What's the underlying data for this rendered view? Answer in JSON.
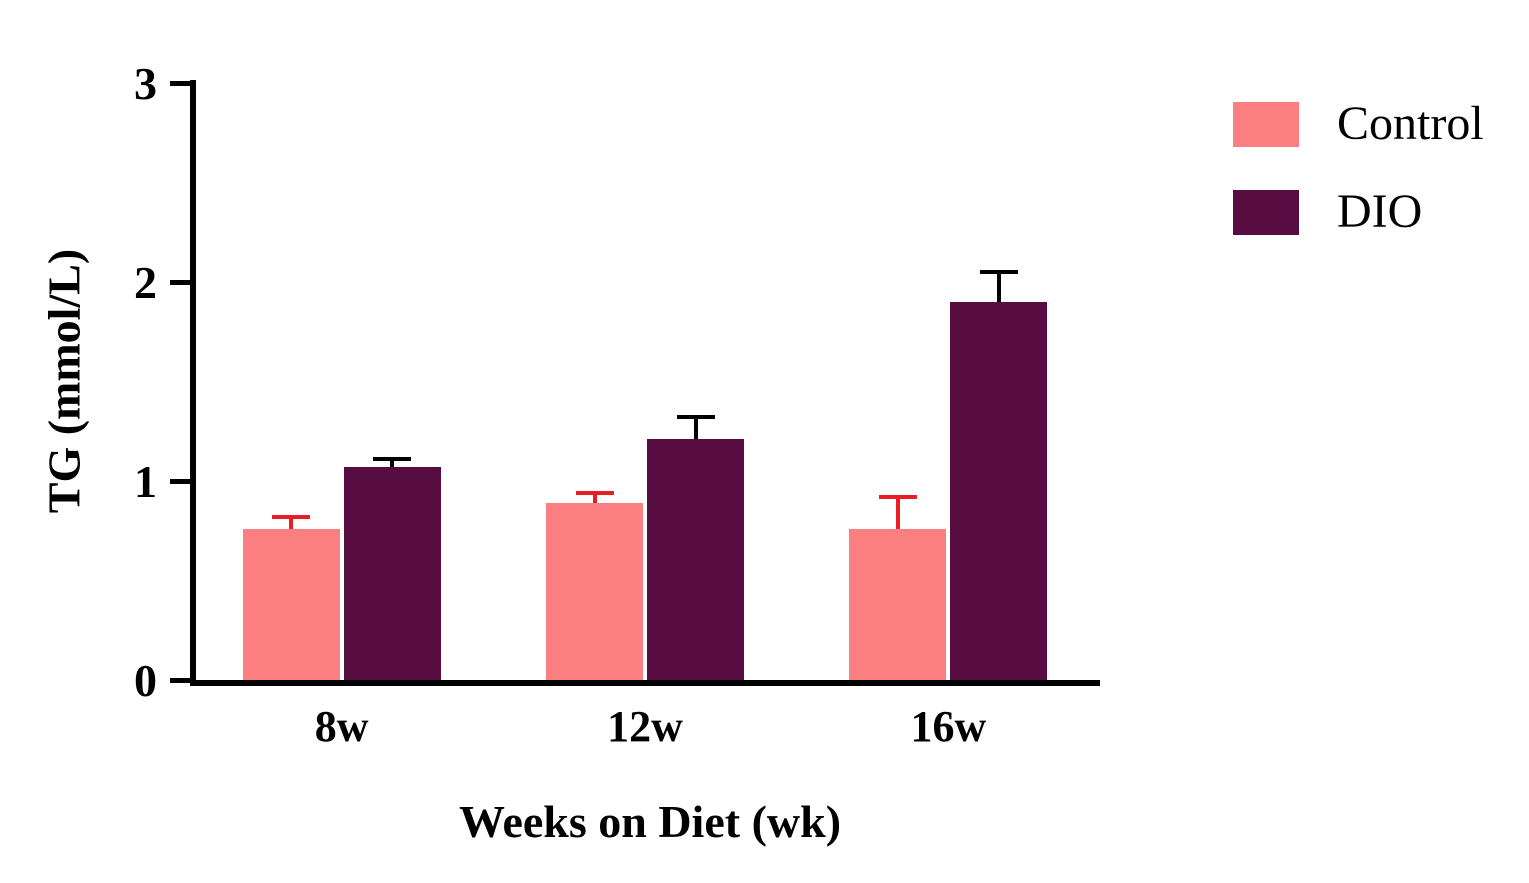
{
  "chart_data": {
    "type": "bar",
    "title": "",
    "xlabel": "Weeks on Diet (wk)",
    "ylabel": "TG (mmol/L)",
    "categories": [
      "8w",
      "12w",
      "16w"
    ],
    "series": [
      {
        "name": "Control",
        "color": "#FB7E81",
        "error_color": "#EC1C24",
        "values": [
          0.76,
          0.89,
          0.76
        ],
        "errors": [
          0.07,
          0.06,
          0.17
        ]
      },
      {
        "name": "DIO",
        "color": "#570D41",
        "error_color": "#000000",
        "values": [
          1.07,
          1.21,
          1.9
        ],
        "errors": [
          0.05,
          0.12,
          0.16
        ]
      }
    ],
    "ylim": [
      0,
      3
    ],
    "yticks": [
      0,
      1,
      2,
      3
    ],
    "legend_position": "top-right",
    "grid": false,
    "error_bars": "upper-sem-with-cap"
  }
}
